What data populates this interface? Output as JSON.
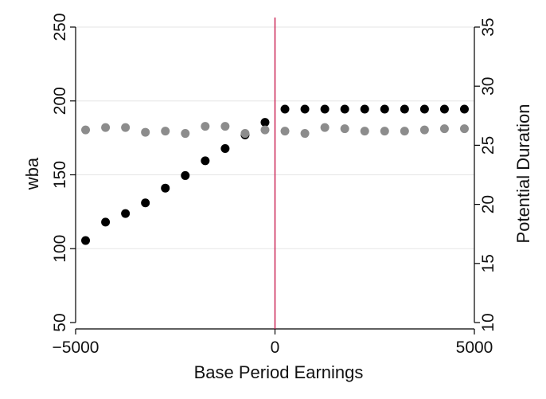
{
  "chart_data": {
    "type": "scatter",
    "title": "",
    "xlabel": "Base Period Earnings",
    "ylabel_left": "wba",
    "ylabel_right": "Potential Duration",
    "xlim": [
      -5000,
      5000
    ],
    "ylim_left": [
      50,
      250
    ],
    "ylim_right": [
      10,
      35
    ],
    "x_ticks": [
      -5000,
      0,
      5000
    ],
    "x_tick_labels": [
      "−5000",
      "0",
      "5000"
    ],
    "y_left_ticks": [
      50,
      100,
      150,
      200,
      250
    ],
    "y_right_ticks": [
      10,
      15,
      20,
      25,
      30,
      35
    ],
    "grid": true,
    "legend": false,
    "vline": {
      "x": 0,
      "color": "#c8174b"
    },
    "series": [
      {
        "axis": "left",
        "color": "#000000",
        "x": [
          -4750,
          -4250,
          -3750,
          -3250,
          -2750,
          -2250,
          -1750,
          -1250,
          -750,
          -250,
          250,
          750,
          1250,
          1750,
          2250,
          2750,
          3250,
          3750,
          4250,
          4750
        ],
        "y": [
          105.5,
          118,
          123.8,
          131,
          141,
          149.5,
          159.5,
          167.8,
          177,
          185.5,
          194.5,
          194.5,
          194.5,
          194.5,
          194.5,
          194.5,
          194.5,
          194.5,
          194.5,
          194.5
        ]
      },
      {
        "axis": "right",
        "color": "#8c8c8c",
        "x": [
          -4750,
          -4250,
          -3750,
          -3250,
          -2750,
          -2250,
          -1750,
          -1250,
          -750,
          -250,
          250,
          750,
          1250,
          1750,
          2250,
          2750,
          3250,
          3750,
          4250,
          4750
        ],
        "y": [
          26.3,
          26.5,
          26.5,
          26.1,
          26.2,
          26.0,
          26.6,
          26.6,
          26.0,
          26.3,
          26.2,
          26.0,
          26.5,
          26.4,
          26.2,
          26.2,
          26.2,
          26.3,
          26.4,
          26.4
        ]
      }
    ]
  }
}
